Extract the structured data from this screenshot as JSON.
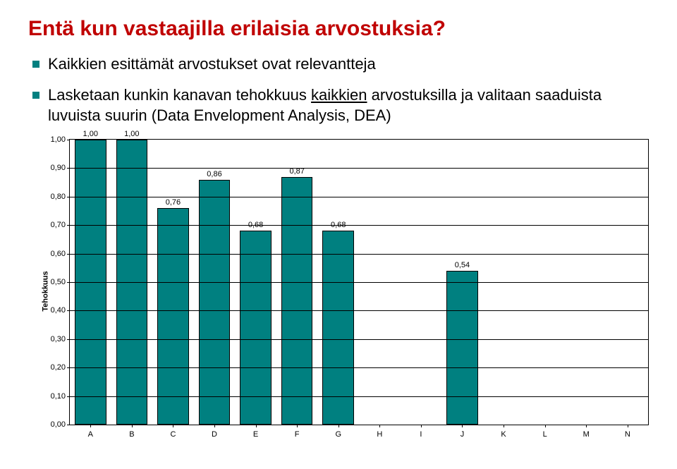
{
  "title": {
    "parts": [
      "Entä",
      " kun vastaajilla erilaisia arvostuksia?"
    ],
    "color_first": "#c00000",
    "color_rest": "#c00000"
  },
  "bullets": [
    {
      "text": "Kaikkien esittämät arvostukset ovat relevantteja",
      "marker_color": "#008080"
    },
    {
      "html_parts": [
        {
          "t": "Lasketaan kunkin  kanavan tehokkuus ",
          "u": false
        },
        {
          "t": "kaikkien",
          "u": true
        },
        {
          "t": " arvostuksilla ja valitaan saaduista luvuista suurin (Data Envelopment Analysis, DEA)",
          "u": false
        }
      ],
      "marker_color": "#008080"
    }
  ],
  "chart": {
    "type": "bar",
    "ylabel": "Tehokkuus",
    "xlabel": "",
    "ylim": [
      0.0,
      1.0
    ],
    "ytick_step": 0.1,
    "ytick_format": "0,00",
    "grid_color": "#000000",
    "background_color": "#ffffff",
    "bar_color": "#008080",
    "bar_border_color": "#000000",
    "label_fontsize": 11,
    "categories": [
      "A",
      "B",
      "C",
      "D",
      "E",
      "F",
      "G",
      "H",
      "I",
      "J",
      "K",
      "L",
      "M",
      "N"
    ],
    "values": [
      1.0,
      1.0,
      0.76,
      0.86,
      0.68,
      0.87,
      0.68,
      null,
      null,
      0.54,
      null,
      null,
      null,
      null
    ]
  }
}
